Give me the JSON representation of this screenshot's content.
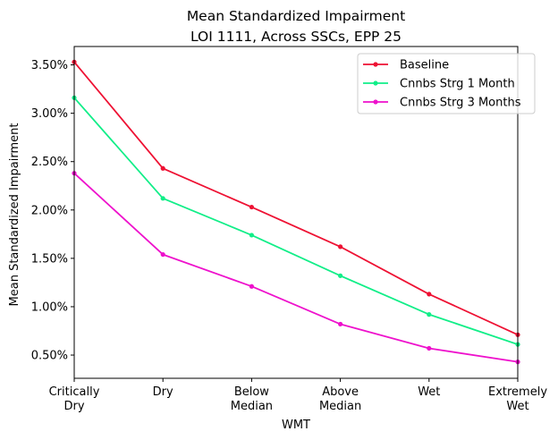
{
  "chart_data": {
    "type": "line",
    "title": "Mean Standardized Impairment",
    "subtitle": "LOI 1111, Across SSCs, EPP 25",
    "xlabel": "WMT",
    "ylabel": "Mean Standardized Impairment",
    "categories": [
      [
        "Critically",
        "Dry"
      ],
      [
        "Dry"
      ],
      [
        "Below",
        "Median"
      ],
      [
        "Above",
        "Median"
      ],
      [
        "Wet"
      ],
      [
        "Extremely",
        "Wet"
      ]
    ],
    "ylim": [
      0.26,
      3.69
    ],
    "yticks": [
      0.5,
      1.0,
      1.5,
      2.0,
      2.5,
      3.0,
      3.5
    ],
    "ytick_labels": [
      "0.50%",
      "1.00%",
      "1.50%",
      "2.00%",
      "2.50%",
      "3.00%",
      "3.50%"
    ],
    "grid": false,
    "legend_position": "top-right",
    "series": [
      {
        "name": "Baseline",
        "color": "#ee1133",
        "values": [
          3.53,
          2.43,
          2.03,
          1.62,
          1.13,
          0.71
        ]
      },
      {
        "name": "Cnnbs Strg 1 Month",
        "color": "#11ee88",
        "values": [
          3.16,
          2.12,
          1.74,
          1.32,
          0.92,
          0.61
        ]
      },
      {
        "name": "Cnnbs Strg 3 Months",
        "color": "#ee11cc",
        "values": [
          2.38,
          1.54,
          1.21,
          0.82,
          0.57,
          0.43
        ]
      }
    ]
  }
}
